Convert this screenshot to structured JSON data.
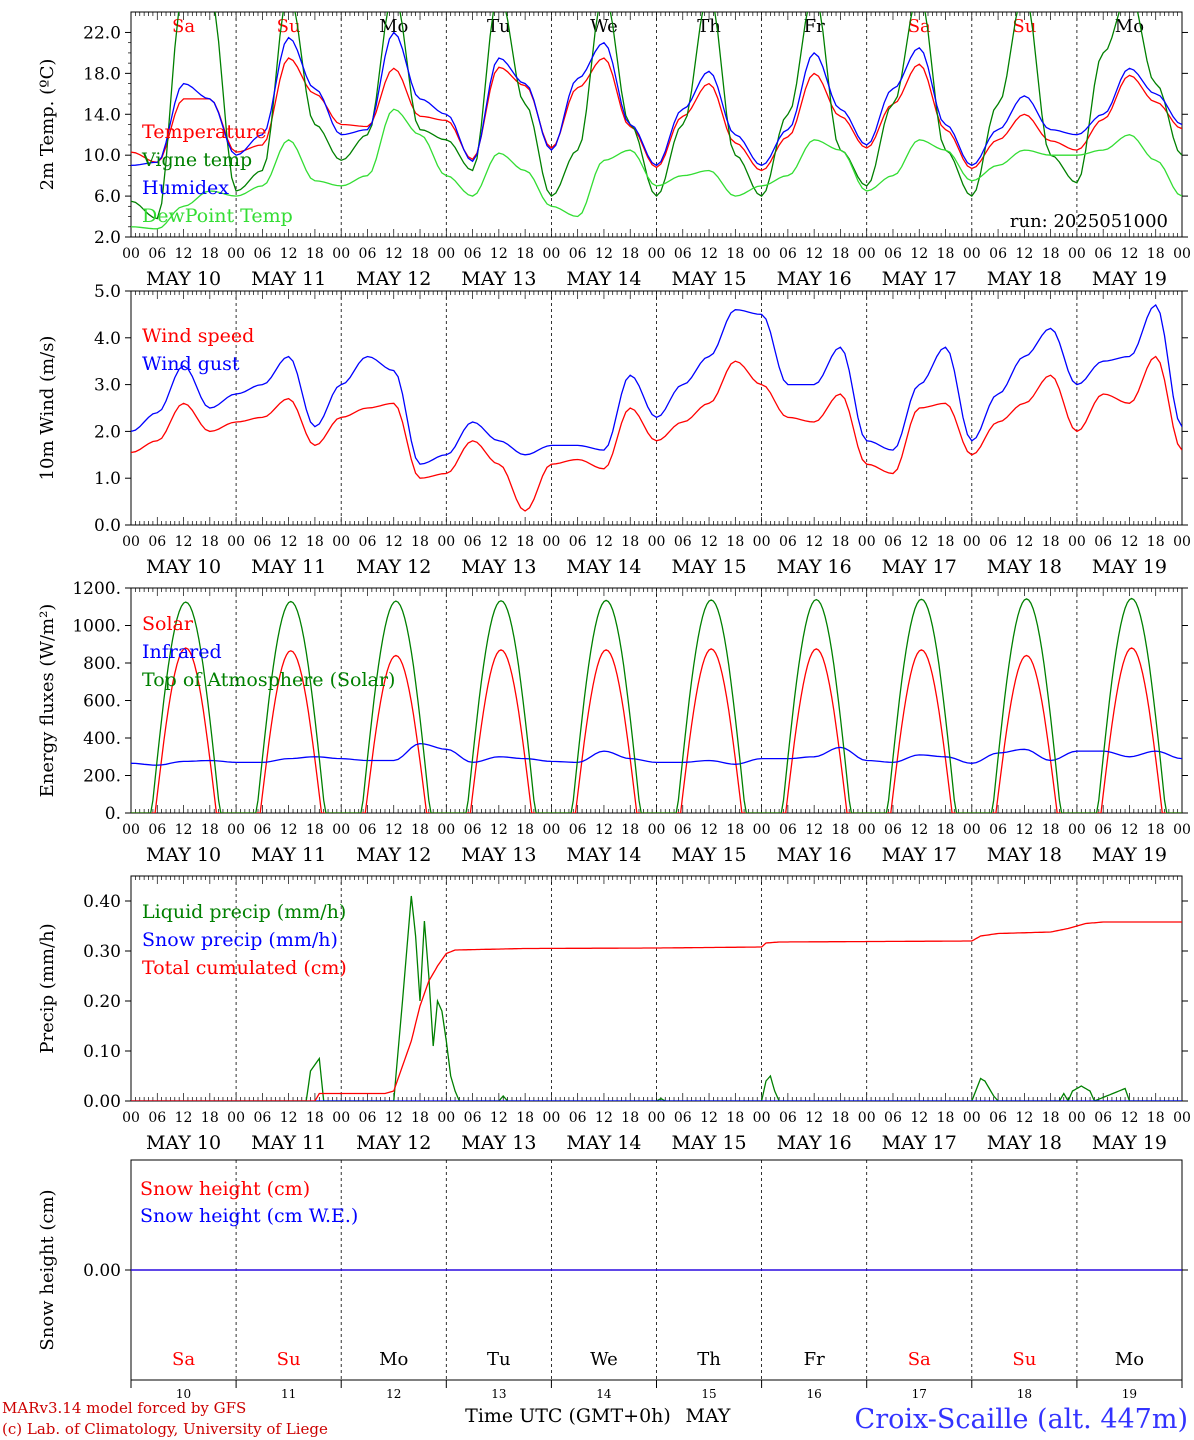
{
  "colors": {
    "red": "#ff0000",
    "blue": "#0000ff",
    "darkgreen": "#008000",
    "lightgreen": "#33dd33",
    "black": "#000000",
    "footer_red": "#cc0000",
    "station_blue": "#3333ff"
  },
  "hour_labels": [
    "00",
    "06",
    "12",
    "18"
  ],
  "final_hour_label": "00",
  "day_labels": [
    "MAY 10",
    "MAY 11",
    "MAY 12",
    "MAY 13",
    "MAY 14",
    "MAY 15",
    "MAY 16",
    "MAY 17",
    "MAY 18",
    "MAY 19"
  ],
  "weekdays": [
    {
      "label": "Sa",
      "weekend": true
    },
    {
      "label": "Su",
      "weekend": true
    },
    {
      "label": "Mo",
      "weekend": false
    },
    {
      "label": "Tu",
      "weekend": false
    },
    {
      "label": "We",
      "weekend": false
    },
    {
      "label": "Th",
      "weekend": false
    },
    {
      "label": "Fr",
      "weekend": false
    },
    {
      "label": "Sa",
      "weekend": true
    },
    {
      "label": "Su",
      "weekend": true
    },
    {
      "label": "Mo",
      "weekend": false
    }
  ],
  "footer": {
    "day_numbers": [
      "10",
      "11",
      "12",
      "13",
      "14",
      "15",
      "16",
      "17",
      "18",
      "19"
    ],
    "xlabel": "Time UTC (GMT+0h)",
    "month": "MAY",
    "model_line1": "MARv3.14 model forced by GFS",
    "model_line2": "(c) Lab. of Climatology, University of Liege",
    "station": "Croix-Scaille (alt. 447m)"
  },
  "chart_data": [
    {
      "type": "line",
      "ylabel": "2m Temp. (ºC)",
      "ylim": [
        2.0,
        24.0
      ],
      "ytick_values": [
        2.0,
        6.0,
        10.0,
        14.0,
        18.0,
        22.0
      ],
      "ytick_labels": [
        "2.0",
        "6.0",
        "10.0",
        "14.0",
        "18.0",
        "22.0"
      ],
      "annotation": "run: 2025051000",
      "x_hours": [
        0,
        6,
        12,
        18,
        24,
        30,
        36,
        42,
        48,
        54,
        60,
        66,
        72,
        78,
        84,
        90,
        96,
        102,
        108,
        114,
        120,
        126,
        132,
        138,
        144,
        150,
        156,
        162,
        168,
        174,
        180,
        186,
        192,
        198,
        204,
        210,
        216,
        222,
        228,
        234,
        240
      ],
      "series": [
        {
          "name": "Temperature",
          "color": "red",
          "values": [
            10.3,
            9.3,
            15.5,
            15.5,
            10.3,
            11.0,
            19.5,
            16.0,
            13.0,
            12.8,
            18.5,
            13.8,
            13.4,
            9.6,
            18.6,
            16.8,
            10.7,
            16.6,
            19.5,
            12.8,
            8.8,
            13.8,
            17.0,
            11.2,
            8.5,
            11.8,
            18.0,
            13.8,
            10.7,
            15.0,
            18.9,
            12.5,
            8.7,
            11.5,
            14.0,
            11.4,
            10.5,
            13.5,
            17.8,
            15.2,
            12.6
          ]
        },
        {
          "name": "Vigne temp",
          "color": "darkgreen",
          "values": [
            5.5,
            3.8,
            26,
            26,
            6.5,
            8.5,
            26,
            13,
            9.5,
            12.0,
            26,
            12.5,
            11.5,
            8.5,
            26,
            15,
            6,
            10.5,
            26,
            13,
            6,
            13,
            26,
            10,
            6,
            14,
            26,
            10.5,
            7,
            15,
            26,
            10.5,
            6,
            15,
            26,
            10,
            7.3,
            20,
            26,
            17,
            10
          ]
        },
        {
          "name": "Humidex",
          "color": "blue",
          "values": [
            9.0,
            9.3,
            17.0,
            15.5,
            10.0,
            12.0,
            21.5,
            16.5,
            12.0,
            12.5,
            22.0,
            15.5,
            14.0,
            9.4,
            19.5,
            17.0,
            10.5,
            17.5,
            21.0,
            13.0,
            9.0,
            14.5,
            18.2,
            12.0,
            9.0,
            12.5,
            20.0,
            14.5,
            11.0,
            16.5,
            20.5,
            13.0,
            9.0,
            12.5,
            15.8,
            12.5,
            12.0,
            14.0,
            18.5,
            16.0,
            13.0
          ]
        },
        {
          "name": "DewPoint Temp",
          "color": "lightgreen",
          "values": [
            3.0,
            2.8,
            5.0,
            6.5,
            6.0,
            7.0,
            11.5,
            7.5,
            7.0,
            8.0,
            14.5,
            12.0,
            8.0,
            6.0,
            10.2,
            8.5,
            5.0,
            4.0,
            9.5,
            10.5,
            7.0,
            8.0,
            8.5,
            6.0,
            7.0,
            8.0,
            11.5,
            10.5,
            6.5,
            8.0,
            11.5,
            10.5,
            7.5,
            9.0,
            10.5,
            10.0,
            10.0,
            10.5,
            12.0,
            9.5,
            6.0
          ]
        }
      ]
    },
    {
      "type": "line",
      "ylabel": "10m Wind (m/s)",
      "ylim": [
        0.0,
        5.0
      ],
      "ytick_values": [
        0.0,
        1.0,
        2.0,
        3.0,
        4.0,
        5.0
      ],
      "ytick_labels": [
        "0.0",
        "1.0",
        "2.0",
        "3.0",
        "4.0",
        "5.0"
      ],
      "x_hours": [
        0,
        6,
        12,
        18,
        24,
        30,
        36,
        42,
        48,
        54,
        60,
        66,
        72,
        78,
        84,
        90,
        96,
        102,
        108,
        114,
        120,
        126,
        132,
        138,
        144,
        150,
        156,
        162,
        168,
        174,
        180,
        186,
        192,
        198,
        204,
        210,
        216,
        222,
        228,
        234,
        240
      ],
      "series": [
        {
          "name": "Wind speed",
          "color": "red",
          "values": [
            1.55,
            1.8,
            2.6,
            2.0,
            2.2,
            2.3,
            2.7,
            1.7,
            2.3,
            2.5,
            2.6,
            1.0,
            1.1,
            1.8,
            1.3,
            0.3,
            1.3,
            1.4,
            1.2,
            2.5,
            1.8,
            2.2,
            2.6,
            3.5,
            3.0,
            2.3,
            2.2,
            2.8,
            1.3,
            1.1,
            2.5,
            2.6,
            1.5,
            2.2,
            2.6,
            3.2,
            2.0,
            2.8,
            2.6,
            3.6,
            1.6
          ]
        },
        {
          "name": "Wind gust",
          "color": "blue",
          "values": [
            2.0,
            2.4,
            3.4,
            2.5,
            2.8,
            3.0,
            3.6,
            2.1,
            3.0,
            3.6,
            3.3,
            1.3,
            1.5,
            2.2,
            1.8,
            1.5,
            1.7,
            1.7,
            1.6,
            3.2,
            2.3,
            3.0,
            3.6,
            4.6,
            4.5,
            3.0,
            3.0,
            3.8,
            1.8,
            1.6,
            3.0,
            3.8,
            1.8,
            2.8,
            3.6,
            4.2,
            3.0,
            3.5,
            3.6,
            4.7,
            2.1
          ]
        }
      ]
    },
    {
      "type": "line",
      "ylabel": "Energy fluxes (W/m²)",
      "ylim": [
        0,
        1200
      ],
      "ytick_values": [
        0,
        200,
        400,
        600,
        800,
        1000,
        1200
      ],
      "ytick_labels": [
        "0.",
        "200.",
        "400.",
        "600.",
        "800.",
        "1000.",
        "1200."
      ],
      "series": [
        {
          "name": "Solar",
          "color": "red",
          "day_peaks": [
            880,
            865,
            840,
            870,
            870,
            875,
            875,
            870,
            840,
            880
          ]
        },
        {
          "name": "Infrared",
          "color": "blue",
          "values": [
            265,
            255,
            275,
            280,
            270,
            270,
            290,
            300,
            290,
            280,
            280,
            370,
            340,
            270,
            300,
            290,
            275,
            270,
            330,
            290,
            270,
            270,
            280,
            260,
            290,
            290,
            300,
            350,
            280,
            270,
            310,
            300,
            265,
            320,
            340,
            280,
            330,
            330,
            300,
            330,
            290
          ]
        },
        {
          "name": "Top of Atmosphere (Solar)",
          "color": "darkgreen",
          "day_peaks": [
            1125,
            1128,
            1130,
            1132,
            1134,
            1136,
            1138,
            1140,
            1142,
            1144
          ]
        }
      ]
    },
    {
      "type": "line",
      "ylabel": "Precip (mm/h)",
      "ylim": [
        0.0,
        0.45
      ],
      "ytick_values": [
        0.0,
        0.1,
        0.2,
        0.3,
        0.4
      ],
      "ytick_labels": [
        "0.00",
        "0.10",
        "0.20",
        "0.30",
        "0.40"
      ],
      "series": [
        {
          "name": "Liquid precip (mm/h)",
          "color": "darkgreen",
          "points": [
            [
              0,
              0
            ],
            [
              40,
              0
            ],
            [
              41,
              0.06
            ],
            [
              43,
              0.085
            ],
            [
              44,
              0
            ],
            [
              60,
              0
            ],
            [
              62,
              0.2
            ],
            [
              64,
              0.41
            ],
            [
              65,
              0.33
            ],
            [
              66,
              0.2
            ],
            [
              67,
              0.36
            ],
            [
              68,
              0.25
            ],
            [
              69,
              0.11
            ],
            [
              70,
              0.2
            ],
            [
              71,
              0.18
            ],
            [
              72,
              0.12
            ],
            [
              73,
              0.05
            ],
            [
              74,
              0.02
            ],
            [
              75,
              0
            ],
            [
              84,
              0
            ],
            [
              85,
              0.01
            ],
            [
              86,
              0
            ],
            [
              120,
              0
            ],
            [
              121,
              0.005
            ],
            [
              122,
              0
            ],
            [
              144,
              0
            ],
            [
              145,
              0.04
            ],
            [
              146,
              0.05
            ],
            [
              147,
              0.02
            ],
            [
              148,
              0
            ],
            [
              192,
              0
            ],
            [
              194,
              0.045
            ],
            [
              195,
              0.04
            ],
            [
              197,
              0.01
            ],
            [
              198,
              0
            ],
            [
              212,
              0
            ],
            [
              213,
              0.015
            ],
            [
              214,
              0
            ],
            [
              215,
              0.02
            ],
            [
              217,
              0.03
            ],
            [
              219,
              0.02
            ],
            [
              220,
              0
            ],
            [
              227,
              0.025
            ],
            [
              228,
              0
            ],
            [
              240,
              0
            ]
          ]
        },
        {
          "name": "Snow precip (mm/h)",
          "color": "blue",
          "points": [
            [
              0,
              0
            ],
            [
              240,
              0
            ]
          ]
        },
        {
          "name": "Total cumulated (cm)",
          "color": "red",
          "points": [
            [
              0,
              0
            ],
            [
              42,
              0
            ],
            [
              43,
              0.015
            ],
            [
              58,
              0.015
            ],
            [
              60,
              0.02
            ],
            [
              64,
              0.12
            ],
            [
              66,
              0.19
            ],
            [
              68,
              0.24
            ],
            [
              70,
              0.27
            ],
            [
              72,
              0.295
            ],
            [
              74,
              0.302
            ],
            [
              90,
              0.305
            ],
            [
              120,
              0.306
            ],
            [
              144,
              0.308
            ],
            [
              145,
              0.316
            ],
            [
              148,
              0.318
            ],
            [
              192,
              0.32
            ],
            [
              194,
              0.33
            ],
            [
              198,
              0.335
            ],
            [
              210,
              0.338
            ],
            [
              214,
              0.345
            ],
            [
              218,
              0.355
            ],
            [
              222,
              0.358
            ],
            [
              240,
              0.358
            ]
          ]
        }
      ]
    },
    {
      "type": "line",
      "ylabel": "Snow height (cm)",
      "ytick_values": [
        0.0
      ],
      "ytick_labels": [
        "0.00"
      ],
      "series": [
        {
          "name": "Snow height (cm)",
          "color": "red",
          "values": [
            0.0,
            0.0
          ]
        },
        {
          "name": "Snow height (cm W.E.)",
          "color": "blue",
          "values": [
            0.0,
            0.0
          ]
        }
      ]
    }
  ]
}
